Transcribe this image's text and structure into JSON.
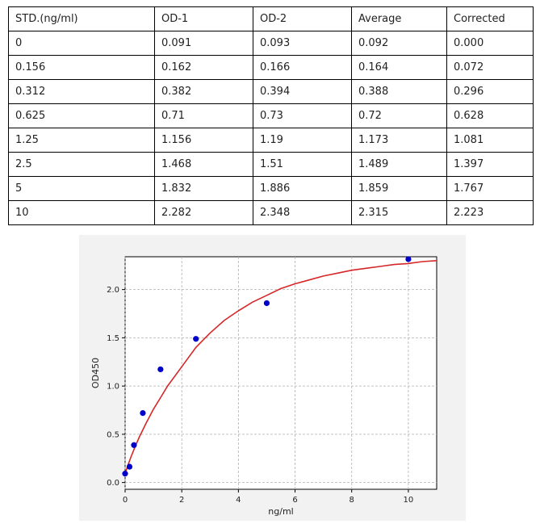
{
  "table": {
    "header": [
      "STD.(ng/ml)",
      "OD-1",
      "OD-2",
      "Average",
      "Corrected"
    ],
    "rows": [
      [
        "0",
        "0.091",
        "0.093",
        "0.092",
        "0.000"
      ],
      [
        "0.156",
        "0.162",
        "0.166",
        "0.164",
        "0.072"
      ],
      [
        "0.312",
        "0.382",
        "0.394",
        "0.388",
        "0.296"
      ],
      [
        "0.625",
        "0.71",
        "0.73",
        "0.72",
        "0.628"
      ],
      [
        "1.25",
        "1.156",
        "1.19",
        "1.173",
        "1.081"
      ],
      [
        "2.5",
        "1.468",
        "1.51",
        "1.489",
        "1.397"
      ],
      [
        "5",
        "1.832",
        "1.886",
        "1.859",
        "1.767"
      ],
      [
        "10",
        "2.282",
        "2.348",
        "2.315",
        "2.223"
      ]
    ]
  },
  "chart_data": {
    "type": "scatter",
    "title": "",
    "xlabel": "ng/ml",
    "ylabel": "OD450",
    "xlim": [
      0,
      11
    ],
    "ylim": [
      -0.07,
      2.34
    ],
    "xticks": [
      0,
      2,
      4,
      6,
      8,
      10
    ],
    "yticks": [
      0.0,
      0.5,
      1.0,
      1.5,
      2.0
    ],
    "grid": true,
    "series": [
      {
        "kind": "points",
        "color": "#0000cc",
        "x": [
          0,
          0.156,
          0.312,
          0.625,
          1.25,
          2.5,
          5,
          10
        ],
        "y": [
          0.092,
          0.164,
          0.388,
          0.72,
          1.173,
          1.489,
          1.859,
          2.315
        ]
      },
      {
        "kind": "fit-curve",
        "color": "#d62728",
        "x": [
          0,
          0.1,
          0.2,
          0.35,
          0.5,
          0.75,
          1,
          1.25,
          1.5,
          2,
          2.5,
          3,
          3.5,
          4,
          4.5,
          5,
          5.5,
          6,
          6.5,
          7,
          7.5,
          8,
          8.5,
          9,
          9.5,
          10,
          10.5,
          11
        ],
        "y": [
          0.09,
          0.18,
          0.26,
          0.37,
          0.47,
          0.62,
          0.76,
          0.88,
          1.0,
          1.2,
          1.4,
          1.55,
          1.68,
          1.78,
          1.87,
          1.94,
          2.01,
          2.06,
          2.1,
          2.14,
          2.17,
          2.2,
          2.22,
          2.24,
          2.26,
          2.27,
          2.29,
          2.3
        ]
      }
    ]
  }
}
